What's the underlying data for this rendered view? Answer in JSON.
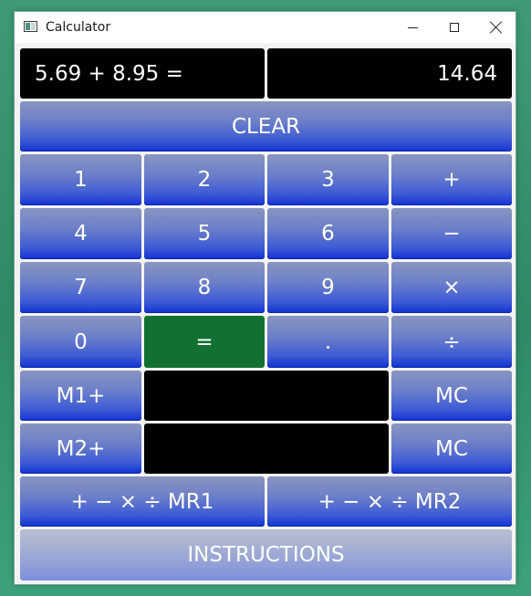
{
  "window": {
    "title": "Calculator",
    "icons": {
      "app": "calculator-app-icon",
      "minimize": "minimize-icon",
      "maximize": "maximize-icon",
      "close": "close-icon"
    }
  },
  "display": {
    "expression": "5.69 + 8.95 =",
    "result": "14.64"
  },
  "buttons": {
    "clear": "CLEAR",
    "d1": "1",
    "d2": "2",
    "d3": "3",
    "plus": "+",
    "d4": "4",
    "d5": "5",
    "d6": "6",
    "minus": "−",
    "d7": "7",
    "d8": "8",
    "d9": "9",
    "times": "×",
    "d0": "0",
    "equals": "=",
    "dot": ".",
    "divide": "÷",
    "m1plus": "M1+",
    "mc1": "MC",
    "m2plus": "M2+",
    "mc2": "MC",
    "mr1": "+ − × ÷ MR1",
    "mr2": "+ − × ÷ MR2",
    "instructions": "INSTRUCTIONS"
  },
  "memory": {
    "m1": "",
    "m2": ""
  },
  "colors": {
    "button_top": "#8a95c0",
    "button_bottom": "#1231d2",
    "equals": "#127132",
    "display_bg": "#000000",
    "desktop": "#3f9a75"
  }
}
